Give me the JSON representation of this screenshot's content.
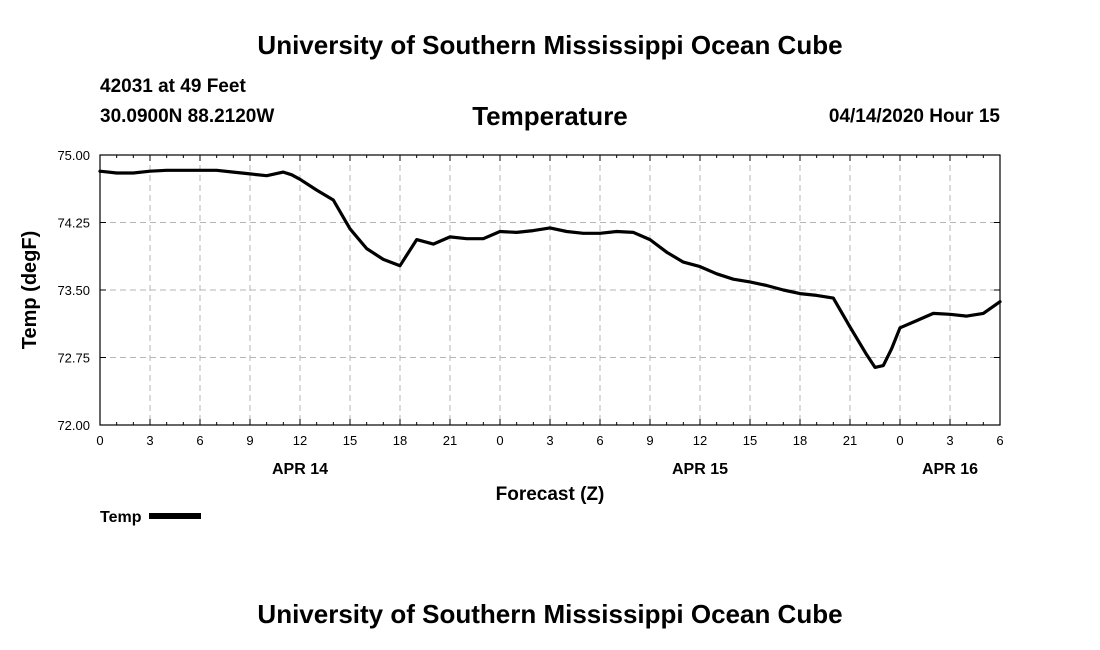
{
  "header": {
    "title": "University of Southern Mississippi Ocean Cube",
    "station": "42031 at 49 Feet",
    "coordinates": "30.0900N 88.2120W",
    "datetime": "04/14/2020 Hour 15"
  },
  "footer": {
    "title": "University of Southern Mississippi Ocean Cube"
  },
  "chart_data": {
    "type": "line",
    "title": "Temperature",
    "xlabel": "Forecast (Z)",
    "ylabel": "Temp (degF)",
    "xlim": [
      0,
      54
    ],
    "ylim": [
      72.0,
      75.0
    ],
    "grid": true,
    "yticks": [
      "72.00",
      "72.75",
      "73.50",
      "74.25",
      "75.00"
    ],
    "ytick_values": [
      72.0,
      72.75,
      73.5,
      74.25,
      75.0
    ],
    "xtick_hours": [
      0,
      3,
      6,
      9,
      12,
      15,
      18,
      21,
      24,
      27,
      30,
      33,
      36,
      39,
      42,
      45,
      48,
      51,
      54
    ],
    "xticks": [
      "0",
      "3",
      "6",
      "9",
      "12",
      "15",
      "18",
      "21",
      "0",
      "3",
      "6",
      "9",
      "12",
      "15",
      "18",
      "21",
      "0",
      "3",
      "6"
    ],
    "day_labels": [
      {
        "hour": 12,
        "label": "APR 14"
      },
      {
        "hour": 36,
        "label": "APR 15"
      },
      {
        "hour": 51,
        "label": "APR 16"
      }
    ],
    "legend": "top-left below plot",
    "series": [
      {
        "name": "Temp",
        "color": "#000000",
        "x": [
          0,
          1,
          2,
          3,
          4,
          5,
          6,
          7,
          8,
          9,
          10,
          11,
          11.5,
          12,
          13,
          14,
          15,
          16,
          17,
          18,
          19,
          20,
          21,
          22,
          23,
          24,
          25,
          26,
          27,
          28,
          29,
          30,
          31,
          32,
          33,
          34,
          35,
          36,
          37,
          38,
          39,
          40,
          41,
          42,
          43,
          44,
          45,
          46,
          46.5,
          47,
          47.5,
          48,
          49,
          50,
          51,
          52,
          53,
          54
        ],
        "values": [
          74.82,
          74.8,
          74.8,
          74.82,
          74.83,
          74.83,
          74.83,
          74.83,
          74.81,
          74.79,
          74.77,
          74.81,
          74.78,
          74.73,
          74.61,
          74.5,
          74.18,
          73.96,
          73.84,
          73.77,
          74.06,
          74.01,
          74.09,
          74.07,
          74.07,
          74.15,
          74.14,
          74.16,
          74.19,
          74.15,
          74.13,
          74.13,
          74.15,
          74.14,
          74.06,
          73.92,
          73.81,
          73.76,
          73.68,
          73.62,
          73.59,
          73.55,
          73.5,
          73.46,
          73.44,
          73.41,
          73.09,
          72.78,
          72.64,
          72.66,
          72.85,
          73.08,
          73.16,
          73.24,
          73.23,
          73.21,
          73.24,
          73.37
        ]
      }
    ]
  },
  "legend": {
    "label": "Temp"
  }
}
